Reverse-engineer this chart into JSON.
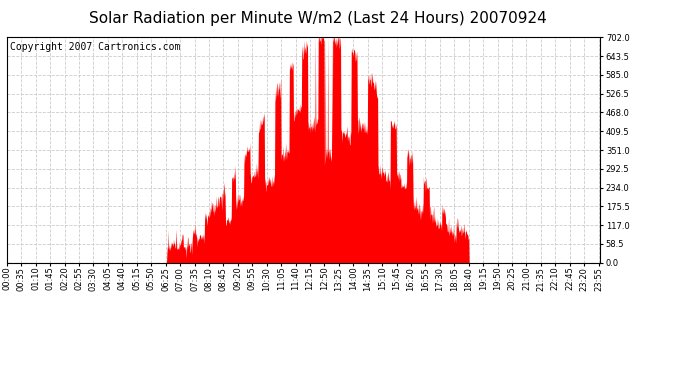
{
  "title": "Solar Radiation per Minute W/m2 (Last 24 Hours) 20070924",
  "copyright_text": "Copyright 2007 Cartronics.com",
  "yticks": [
    0.0,
    58.5,
    117.0,
    175.5,
    234.0,
    292.5,
    351.0,
    409.5,
    468.0,
    526.5,
    585.0,
    643.5,
    702.0
  ],
  "ymax": 702.0,
  "ymin": 0.0,
  "bar_color": "#FF0000",
  "bg_color": "#FFFFFF",
  "plot_bg_color": "#FFFFFF",
  "grid_color": "#CCCCCC",
  "dashed_line_color": "#FF0000",
  "title_fontsize": 11,
  "copyright_fontsize": 7,
  "tick_label_fontsize": 6,
  "xtick_interval": 35,
  "n_points": 1440,
  "sunrise_minute": 388,
  "sunset_minute": 1120,
  "peak_minute": 775,
  "peak_value": 702
}
